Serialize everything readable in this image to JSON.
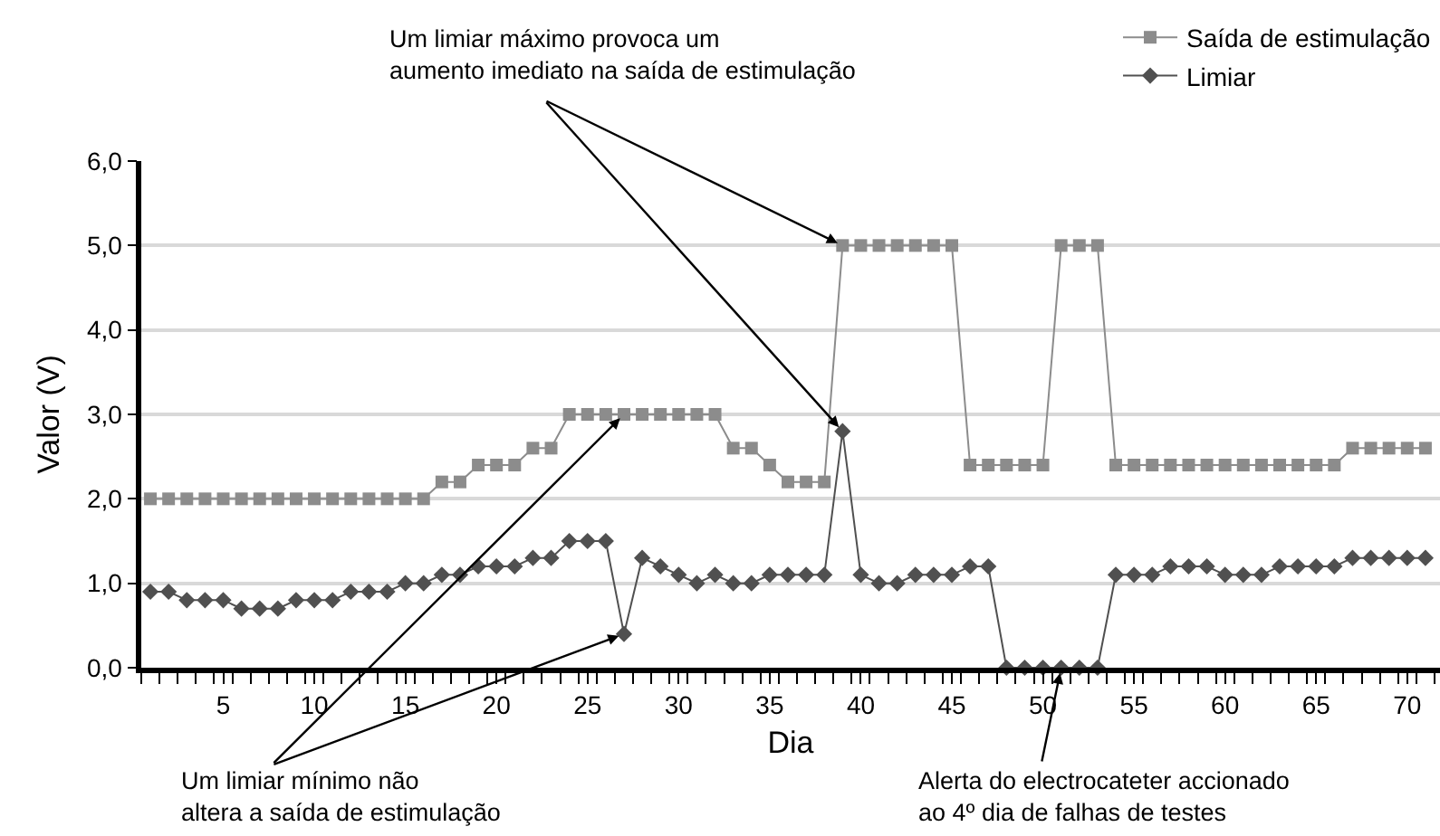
{
  "chart_data": {
    "type": "line",
    "xlabel": "Dia",
    "ylabel": "Valor (V)",
    "x": [
      1,
      2,
      3,
      4,
      5,
      6,
      7,
      8,
      9,
      10,
      11,
      12,
      13,
      14,
      15,
      16,
      17,
      18,
      19,
      20,
      21,
      22,
      23,
      24,
      25,
      26,
      27,
      28,
      29,
      30,
      31,
      32,
      33,
      34,
      35,
      36,
      37,
      38,
      39,
      40,
      41,
      42,
      43,
      44,
      45,
      46,
      47,
      48,
      49,
      50,
      51,
      52,
      53,
      54,
      55,
      56,
      57,
      58,
      59,
      60,
      61,
      62,
      63,
      64,
      65,
      66,
      67,
      68,
      69,
      70,
      71
    ],
    "series": [
      {
        "name": "Saída de estimulação",
        "color": "#8c8c8c",
        "marker": "square",
        "values": [
          2.0,
          2.0,
          2.0,
          2.0,
          2.0,
          2.0,
          2.0,
          2.0,
          2.0,
          2.0,
          2.0,
          2.0,
          2.0,
          2.0,
          2.0,
          2.0,
          2.2,
          2.2,
          2.4,
          2.4,
          2.4,
          2.6,
          2.6,
          3.0,
          3.0,
          3.0,
          3.0,
          3.0,
          3.0,
          3.0,
          3.0,
          3.0,
          2.6,
          2.6,
          2.4,
          2.2,
          2.2,
          2.2,
          5.0,
          5.0,
          5.0,
          5.0,
          5.0,
          5.0,
          5.0,
          2.4,
          2.4,
          2.4,
          2.4,
          2.4,
          5.0,
          5.0,
          5.0,
          2.4,
          2.4,
          2.4,
          2.4,
          2.4,
          2.4,
          2.4,
          2.4,
          2.4,
          2.4,
          2.4,
          2.4,
          2.4,
          2.6,
          2.6,
          2.6,
          2.6,
          2.6
        ]
      },
      {
        "name": "Limiar",
        "color": "#505050",
        "marker": "diamond",
        "values": [
          0.9,
          0.9,
          0.8,
          0.8,
          0.8,
          0.7,
          0.7,
          0.7,
          0.8,
          0.8,
          0.8,
          0.9,
          0.9,
          0.9,
          1.0,
          1.0,
          1.1,
          1.1,
          1.2,
          1.2,
          1.2,
          1.3,
          1.3,
          1.5,
          1.5,
          1.5,
          0.4,
          1.3,
          1.2,
          1.1,
          1.0,
          1.1,
          1.0,
          1.0,
          1.1,
          1.1,
          1.1,
          1.1,
          2.8,
          1.1,
          1.0,
          1.0,
          1.1,
          1.1,
          1.1,
          1.2,
          1.2,
          0,
          0,
          0,
          0,
          0,
          0,
          1.1,
          1.1,
          1.1,
          1.2,
          1.2,
          1.2,
          1.1,
          1.1,
          1.1,
          1.2,
          1.2,
          1.2,
          1.2,
          1.3,
          1.3,
          1.3,
          1.3,
          1.3
        ]
      }
    ],
    "xlim": [
      0.5,
      71.8
    ],
    "xticks": [
      5,
      10,
      15,
      20,
      25,
      30,
      35,
      40,
      45,
      50,
      55,
      60,
      65,
      70
    ],
    "ylim": [
      0,
      6
    ],
    "yticks": [
      {
        "value": 0,
        "label": "0,0"
      },
      {
        "value": 1,
        "label": "1,0"
      },
      {
        "value": 2,
        "label": "2,0"
      },
      {
        "value": 3,
        "label": "3,0"
      },
      {
        "value": 4,
        "label": "4,0"
      },
      {
        "value": 5,
        "label": "5,0"
      },
      {
        "value": 6,
        "label": "6,0"
      }
    ],
    "grid": "y",
    "legend": "top right",
    "line_style": "solid",
    "annotations": [
      {
        "text": "Um limiar máximo provoca um\naumento imediato na saída de estimulação",
        "x": 39,
        "y": 5.0
      },
      {
        "text": "Um limiar mínimo não\naltera a saída de estimulação",
        "x": 27,
        "y": 3.0
      },
      {
        "text": "Alerta do electrocateter accionado\nao 4º dia de falhas de testes",
        "x": 51,
        "y": 0
      }
    ]
  }
}
